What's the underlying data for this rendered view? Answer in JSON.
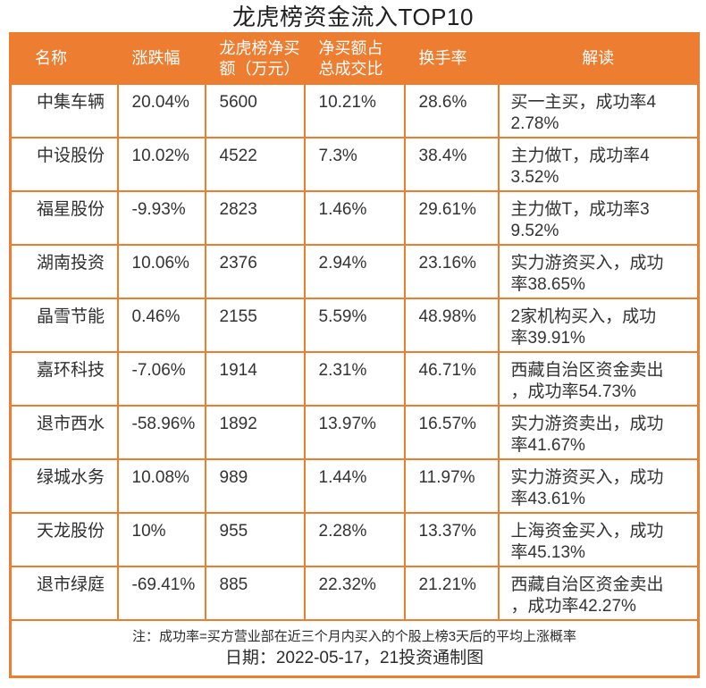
{
  "title": "龙虎榜资金流入TOP10",
  "accent_color": "#ED7D31",
  "table": {
    "headers": [
      "名称",
      "涨跌幅",
      "龙虎榜净买\n额（万元）",
      "净买额占\n总成交比",
      "换手率",
      "解读"
    ],
    "rows": [
      {
        "name": "中集车辆",
        "change": "20.04%",
        "net_buy": "5600",
        "net_buy_ratio": "10.21%",
        "turnover": "28.6%",
        "interpretation": "买一主买，成功率4\n2.78%"
      },
      {
        "name": "中设股份",
        "change": "10.02%",
        "net_buy": "4522",
        "net_buy_ratio": "7.3%",
        "turnover": "38.4%",
        "interpretation": "主力做T，成功率4\n3.52%"
      },
      {
        "name": "福星股份",
        "change": "-9.93%",
        "net_buy": "2823",
        "net_buy_ratio": "1.46%",
        "turnover": "29.61%",
        "interpretation": "主力做T，成功率3\n9.52%"
      },
      {
        "name": "湖南投资",
        "change": "10.06%",
        "net_buy": "2376",
        "net_buy_ratio": "2.94%",
        "turnover": "23.16%",
        "interpretation": "实力游资买入，成功\n率38.65%"
      },
      {
        "name": "晶雪节能",
        "change": "0.46%",
        "net_buy": "2155",
        "net_buy_ratio": "5.59%",
        "turnover": "48.98%",
        "interpretation": "2家机构买入，成功\n率39.91%"
      },
      {
        "name": "嘉环科技",
        "change": "-7.06%",
        "net_buy": "1914",
        "net_buy_ratio": "2.31%",
        "turnover": "46.71%",
        "interpretation": "西藏自治区资金卖出\n，成功率54.73%"
      },
      {
        "name": "退市西水",
        "change": "-58.96%",
        "net_buy": "1892",
        "net_buy_ratio": "13.97%",
        "turnover": "16.57%",
        "interpretation": "实力游资卖出，成功\n率41.67%"
      },
      {
        "name": "绿城水务",
        "change": "10.08%",
        "net_buy": "989",
        "net_buy_ratio": "1.44%",
        "turnover": "11.97%",
        "interpretation": "实力游资买入，成功\n率43.61%"
      },
      {
        "name": "天龙股份",
        "change": "10%",
        "net_buy": "955",
        "net_buy_ratio": "2.28%",
        "turnover": "13.37%",
        "interpretation": "上海资金买入，成功\n率45.13%"
      },
      {
        "name": "退市绿庭",
        "change": "-69.41%",
        "net_buy": "885",
        "net_buy_ratio": "22.32%",
        "turnover": "21.21%",
        "interpretation": "西藏自治区资金卖出\n，成功率42.27%"
      }
    ]
  },
  "footer": {
    "note": "注：成功率=买方营业部在近三个月内买入的个股上榜3天后的平均上涨概率",
    "date_line": "日期：2022-05-17，21投资通制图"
  },
  "chart_data": {
    "type": "table",
    "title": "龙虎榜资金流入TOP10",
    "columns": [
      "名称",
      "涨跌幅",
      "龙虎榜净买额（万元）",
      "净买额占总成交比",
      "换手率",
      "解读"
    ],
    "rows": [
      [
        "中集车辆",
        "20.04%",
        5600,
        "10.21%",
        "28.6%",
        "买一主买，成功率42.78%"
      ],
      [
        "中设股份",
        "10.02%",
        4522,
        "7.3%",
        "38.4%",
        "主力做T，成功率43.52%"
      ],
      [
        "福星股份",
        "-9.93%",
        2823,
        "1.46%",
        "29.61%",
        "主力做T，成功率39.52%"
      ],
      [
        "湖南投资",
        "10.06%",
        2376,
        "2.94%",
        "23.16%",
        "实力游资买入，成功率38.65%"
      ],
      [
        "晶雪节能",
        "0.46%",
        2155,
        "5.59%",
        "48.98%",
        "2家机构买入，成功率39.91%"
      ],
      [
        "嘉环科技",
        "-7.06%",
        1914,
        "2.31%",
        "46.71%",
        "西藏自治区资金卖出，成功率54.73%"
      ],
      [
        "退市西水",
        "-58.96%",
        1892,
        "13.97%",
        "16.57%",
        "实力游资卖出，成功率41.67%"
      ],
      [
        "绿城水务",
        "10.08%",
        989,
        "1.44%",
        "11.97%",
        "实力游资买入，成功率43.61%"
      ],
      [
        "天龙股份",
        "10%",
        955,
        "2.28%",
        "13.37%",
        "上海资金买入，成功率45.13%"
      ],
      [
        "退市绿庭",
        "-69.41%",
        885,
        "22.32%",
        "21.21%",
        "西藏自治区资金卖出，成功率42.27%"
      ]
    ],
    "note": "注：成功率=买方营业部在近三个月内买入的个股上榜3天后的平均上涨概率",
    "date": "2022-05-17",
    "credit": "21投资通制图"
  }
}
